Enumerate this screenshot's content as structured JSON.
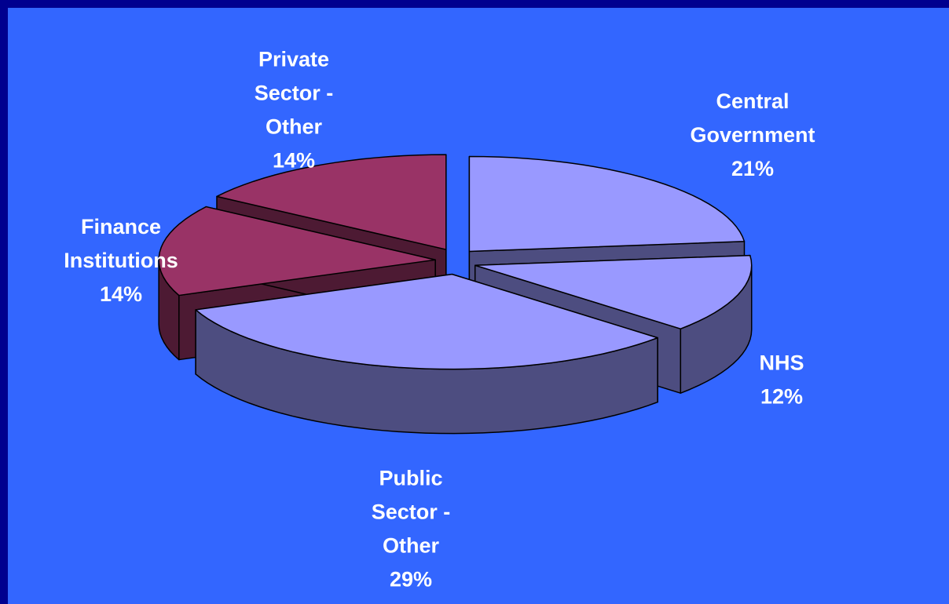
{
  "colors": {
    "frame": "#00008f",
    "background": "#3366ff",
    "public_top": "#9999ff",
    "public_side": "#4d4d80",
    "private_top": "#993366",
    "private_side": "#4d1a33",
    "label": "#ffffff"
  },
  "chart_data": {
    "type": "pie",
    "style": "3d-exploded",
    "title": "",
    "slices": [
      {
        "label_lines": [
          "Central",
          "Government",
          "21%"
        ],
        "value": 21,
        "color": "#9999ff",
        "side_color": "#4d4d80"
      },
      {
        "label_lines": [
          "NHS",
          "12%"
        ],
        "value": 12,
        "color": "#9999ff",
        "side_color": "#4d4d80"
      },
      {
        "label_lines": [
          "Public",
          "Sector -",
          "Other",
          "29%"
        ],
        "value": 29,
        "color": "#9999ff",
        "side_color": "#4d4d80"
      },
      {
        "label_lines": [
          "Finance",
          "Institutions",
          "14%"
        ],
        "value": 14,
        "color": "#993366",
        "side_color": "#4d1a33"
      },
      {
        "label_lines": [
          "Private",
          "Sector -",
          "Other",
          "14%"
        ],
        "value": 14,
        "color": "#993366",
        "side_color": "#4d1a33"
      }
    ]
  }
}
